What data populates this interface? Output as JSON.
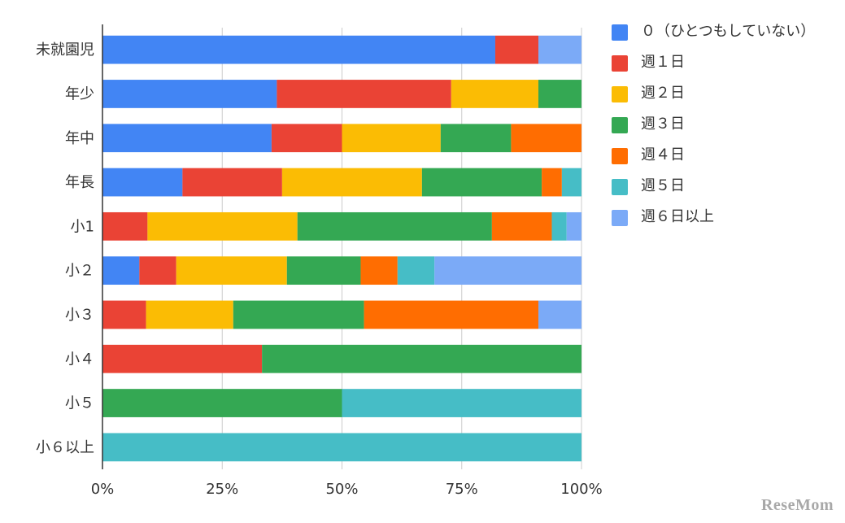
{
  "chart_data": {
    "type": "bar",
    "orientation": "horizontal",
    "stacked": "percent",
    "categories": [
      "未就園児",
      "年少",
      "年中",
      "年長",
      "小1",
      "小２",
      "小３",
      "小４",
      "小５",
      "小６以上"
    ],
    "series": [
      {
        "name": "０（ひとつもしていない）",
        "color": "#4285F4",
        "values": [
          82,
          36.4,
          35.3,
          16.7,
          0,
          7.7,
          0,
          0,
          0,
          0
        ]
      },
      {
        "name": "週１日",
        "color": "#EA4335",
        "values": [
          9,
          36.4,
          14.7,
          20.8,
          9.4,
          7.7,
          9.1,
          33.3,
          0,
          0
        ]
      },
      {
        "name": "週２日",
        "color": "#FBBC04",
        "values": [
          0,
          18.2,
          20.6,
          29.2,
          31.3,
          23.1,
          18.2,
          0,
          0,
          0
        ]
      },
      {
        "name": "週３日",
        "color": "#34A853",
        "values": [
          0,
          9,
          14.7,
          25,
          40.6,
          15.4,
          27.3,
          66.7,
          50,
          0
        ]
      },
      {
        "name": "週４日",
        "color": "#FF6D01",
        "values": [
          0,
          0,
          14.7,
          4.2,
          12.5,
          7.7,
          36.4,
          0,
          0,
          0
        ]
      },
      {
        "name": "週５日",
        "color": "#46BDC6",
        "values": [
          0,
          0,
          0,
          4.1,
          3.1,
          7.7,
          0,
          0,
          50,
          100
        ]
      },
      {
        "name": "週６日以上",
        "color": "#7BAAF7",
        "values": [
          9,
          0,
          0,
          0,
          3.1,
          30.7,
          9,
          0,
          0,
          0
        ]
      }
    ],
    "xlim": [
      0,
      100
    ],
    "xticks": [
      0,
      25,
      50,
      75,
      100
    ],
    "xtick_labels": [
      "0%",
      "25%",
      "50%",
      "75%",
      "100%"
    ],
    "grid": true,
    "legend": "right"
  },
  "watermark": "ReseMom"
}
